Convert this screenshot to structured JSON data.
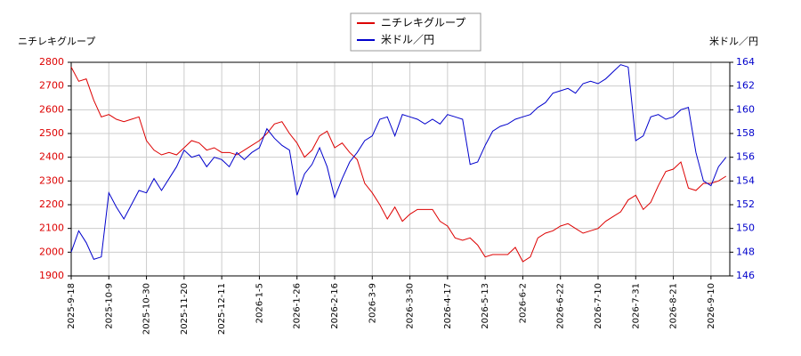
{
  "chart_data": {
    "type": "line",
    "y_label": "ニチレキグループ",
    "y2_label": "米ドル／円",
    "categories": [
      "2025-9-18",
      null,
      null,
      null,
      null,
      "2025-10-9",
      null,
      null,
      null,
      null,
      "2025-10-30",
      null,
      null,
      null,
      null,
      "2025-11-20",
      null,
      null,
      null,
      null,
      "2025-12-11",
      null,
      null,
      null,
      null,
      "2026-1-5",
      null,
      null,
      null,
      null,
      "2026-1-26",
      null,
      null,
      null,
      null,
      "2026-2-16",
      null,
      null,
      null,
      null,
      "2026-3-9",
      null,
      null,
      null,
      null,
      "2026-3-30",
      null,
      null,
      null,
      null,
      "2026-4-17",
      null,
      null,
      null,
      null,
      "2026-5-13",
      null,
      null,
      null,
      null,
      "2026-6-2",
      null,
      null,
      null,
      null,
      "2026-6-22",
      null,
      null,
      null,
      null,
      "2026-7-10",
      null,
      null,
      null,
      null,
      "2026-7-31",
      null,
      null,
      null,
      null,
      "2026-8-21",
      null,
      null,
      null,
      null,
      "2026-9-10",
      null,
      null
    ],
    "series": [
      {
        "name": "ニチレキグループ",
        "color": "#dd0000",
        "axis": "y",
        "values": [
          2780,
          2720,
          2730,
          2640,
          2570,
          2580,
          2560,
          2550,
          2560,
          2570,
          2470,
          2430,
          2410,
          2420,
          2410,
          2440,
          2470,
          2460,
          2430,
          2440,
          2420,
          2420,
          2410,
          2430,
          2450,
          2470,
          2500,
          2540,
          2550,
          2500,
          2460,
          2400,
          2430,
          2490,
          2510,
          2440,
          2460,
          2420,
          2390,
          2290,
          2250,
          2200,
          2140,
          2190,
          2130,
          2160,
          2180,
          2180,
          2180,
          2130,
          2110,
          2060,
          2050,
          2060,
          2030,
          1980,
          1990,
          1990,
          1990,
          2020,
          1960,
          1980,
          2060,
          2080,
          2090,
          2110,
          2120,
          2100,
          2080,
          2090,
          2100,
          2130,
          2150,
          2170,
          2220,
          2240,
          2180,
          2210,
          2280,
          2340,
          2350,
          2380,
          2270,
          2260,
          2290,
          2290,
          2300,
          2320
        ]
      },
      {
        "name": "米ドル／円",
        "color": "#0000cc",
        "axis": "y2",
        "values": [
          148,
          149.8,
          148.8,
          147.4,
          147.6,
          153,
          151.8,
          150.8,
          152,
          153.2,
          153,
          154.2,
          153.2,
          154.2,
          155.2,
          156.6,
          156,
          156.2,
          155.2,
          156,
          155.8,
          155.2,
          156.4,
          155.8,
          156.4,
          156.8,
          158.4,
          157.6,
          157,
          156.6,
          152.8,
          154.6,
          155.4,
          156.8,
          155.2,
          152.6,
          154.2,
          155.6,
          156.4,
          157.4,
          157.8,
          159.2,
          159.4,
          157.8,
          159.6,
          159.4,
          159.2,
          158.8,
          159.2,
          158.8,
          159.6,
          159.4,
          159.2,
          155.4,
          155.6,
          157,
          158.2,
          158.6,
          158.8,
          159.2,
          159.4,
          159.6,
          160.2,
          160.6,
          161.4,
          161.6,
          161.8,
          161.4,
          162.2,
          162.4,
          162.2,
          162.6,
          163.2,
          163.8,
          163.6,
          157.4,
          157.8,
          159.4,
          159.6,
          159.2,
          159.4,
          160,
          160.2,
          156.4,
          154,
          153.6,
          155.2,
          156
        ]
      }
    ],
    "ylim": [
      1900,
      2800
    ],
    "yticks": [
      1900,
      2000,
      2100,
      2200,
      2300,
      2400,
      2500,
      2600,
      2700,
      2800
    ],
    "y2lim": [
      146,
      164
    ],
    "y2ticks": [
      146,
      148,
      150,
      152,
      154,
      156,
      158,
      160,
      162,
      164
    ],
    "grid": true
  }
}
